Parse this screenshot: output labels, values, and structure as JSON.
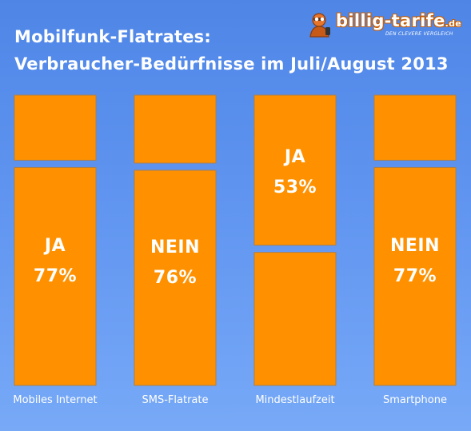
{
  "title": {
    "line1": "Mobilfunk-Flatrates:",
    "line2": "Verbraucher-Bedürfnisse im Juli/August 2013"
  },
  "logo": {
    "text": "billig-tarife",
    "tld": ".de",
    "tagline": "DEN CLEVERE VERGLEICH",
    "icon": "mascot-icon"
  },
  "colors": {
    "background_top": "#4f86e6",
    "background_bottom": "#77a9f7",
    "bar": "#ff9100",
    "bar_border": "#ab7f4d",
    "text": "#ffffff"
  },
  "chart_data": {
    "type": "bar",
    "stacked": true,
    "orientation": "vertical",
    "categories": [
      "Mobiles Internet",
      "SMS-Flatrate",
      "Mindestlaufzeit",
      "Smartphone"
    ],
    "segments_bottom": [
      77,
      76,
      47,
      77
    ],
    "segments_top": [
      23,
      24,
      53,
      23
    ],
    "data_labels": [
      {
        "category": "Mobiles Internet",
        "answer": "JA",
        "value": "77%",
        "segment": "bottom"
      },
      {
        "category": "SMS-Flatrate",
        "answer": "NEIN",
        "value": "76%",
        "segment": "bottom"
      },
      {
        "category": "Mindestlaufzeit",
        "answer": "JA",
        "value": "53%",
        "segment": "top"
      },
      {
        "category": "Smartphone",
        "answer": "NEIN",
        "value": "77%",
        "segment": "bottom"
      }
    ],
    "ylim": [
      0,
      100
    ],
    "grid": false,
    "legend": "none"
  }
}
